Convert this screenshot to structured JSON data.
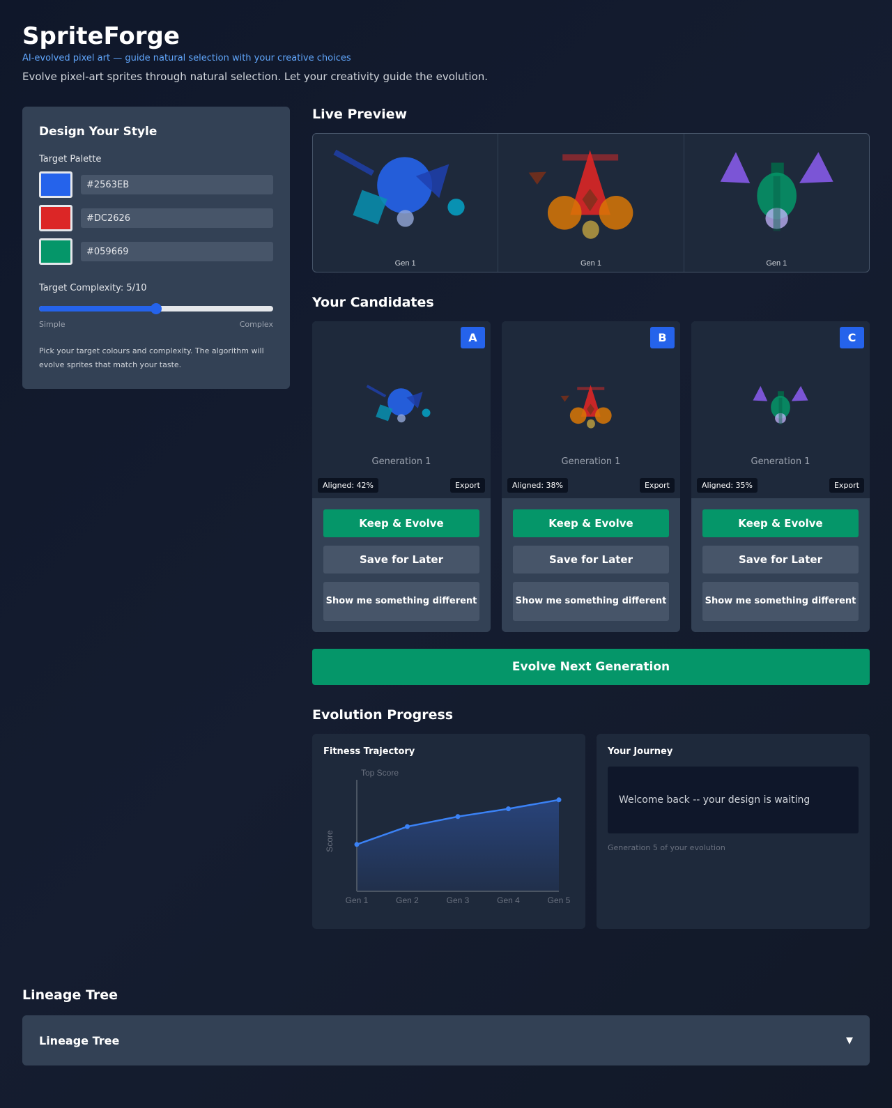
{
  "header": {
    "title": "SpriteForge",
    "tagline": "AI-evolved pixel art — guide natural selection with your creative choices",
    "description": "Evolve pixel-art sprites through natural selection. Let your creativity guide the evolution."
  },
  "style_panel": {
    "title": "Design Your Style",
    "palette_label": "Target Palette",
    "palette": [
      {
        "color": "#2563EB",
        "value": "#2563EB"
      },
      {
        "color": "#DC2626",
        "value": "#DC2626"
      },
      {
        "color": "#059669",
        "value": "#059669"
      }
    ],
    "complexity_label": "Target Complexity: 5/10",
    "complexity": 5,
    "complexity_max": 10,
    "min_label": "Simple",
    "max_label": "Complex",
    "hint": "Pick your target colours and complexity. The algorithm will evolve sprites that match your taste."
  },
  "preview": {
    "title": "Live Preview",
    "cells": [
      {
        "caption": "Gen 1",
        "sprite": "sprite-a"
      },
      {
        "caption": "Gen 1",
        "sprite": "sprite-b"
      },
      {
        "caption": "Gen 1",
        "sprite": "sprite-c"
      }
    ]
  },
  "candidates": {
    "title": "Your Candidates",
    "items": [
      {
        "badge": "A",
        "generation": "Generation 1",
        "aligned": "Aligned: 42%",
        "export": "Export",
        "keep": "Keep & Evolve",
        "save": "Save for Later",
        "different": "Show me something different"
      },
      {
        "badge": "B",
        "generation": "Generation 1",
        "aligned": "Aligned: 38%",
        "export": "Export",
        "keep": "Keep & Evolve",
        "save": "Save for Later",
        "different": "Show me something different"
      },
      {
        "badge": "C",
        "generation": "Generation 1",
        "aligned": "Aligned: 35%",
        "export": "Export",
        "keep": "Keep & Evolve",
        "save": "Save for Later",
        "different": "Show me something different"
      }
    ]
  },
  "evolve_button": "Evolve Next Generation",
  "progress": {
    "title": "Evolution Progress",
    "fitness_title": "Fitness Trajectory",
    "journey_title": "Your Journey",
    "journey_message": "Welcome back -- your design is waiting",
    "journey_sub": "Generation 5 of your evolution"
  },
  "chart_data": {
    "type": "area",
    "title": "Top Score",
    "xlabel": "",
    "ylabel": "Score",
    "categories": [
      "Gen 1",
      "Gen 2",
      "Gen 3",
      "Gen 4",
      "Gen 5"
    ],
    "values": [
      0.42,
      0.58,
      0.67,
      0.74,
      0.82
    ],
    "ylim": [
      0,
      1
    ],
    "grid": false,
    "color": "#3b82f6"
  },
  "lineage": {
    "title": "Lineage Tree",
    "accordion_label": "Lineage Tree",
    "toggle": "▼"
  }
}
